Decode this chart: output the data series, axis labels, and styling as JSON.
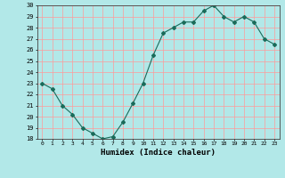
{
  "x": [
    0,
    1,
    2,
    3,
    4,
    5,
    6,
    7,
    8,
    9,
    10,
    11,
    12,
    13,
    14,
    15,
    16,
    17,
    18,
    19,
    20,
    21,
    22,
    23
  ],
  "y": [
    23.0,
    22.5,
    21.0,
    20.2,
    19.0,
    18.5,
    18.0,
    18.2,
    19.5,
    21.2,
    23.0,
    25.5,
    27.5,
    28.0,
    28.5,
    28.5,
    29.5,
    30.0,
    29.0,
    28.5,
    29.0,
    28.5,
    27.0,
    26.5
  ],
  "xlabel": "Humidex (Indice chaleur)",
  "ylim": [
    18,
    30
  ],
  "xlim": [
    -0.5,
    23.5
  ],
  "yticks": [
    18,
    19,
    20,
    21,
    22,
    23,
    24,
    25,
    26,
    27,
    28,
    29,
    30
  ],
  "xticks": [
    0,
    1,
    2,
    3,
    4,
    5,
    6,
    7,
    8,
    9,
    10,
    11,
    12,
    13,
    14,
    15,
    16,
    17,
    18,
    19,
    20,
    21,
    22,
    23
  ],
  "line_color": "#1a6b5a",
  "marker": "D",
  "marker_size": 2,
  "bg_color": "#b2e8e8",
  "grid_color": "#ff9999",
  "title": ""
}
